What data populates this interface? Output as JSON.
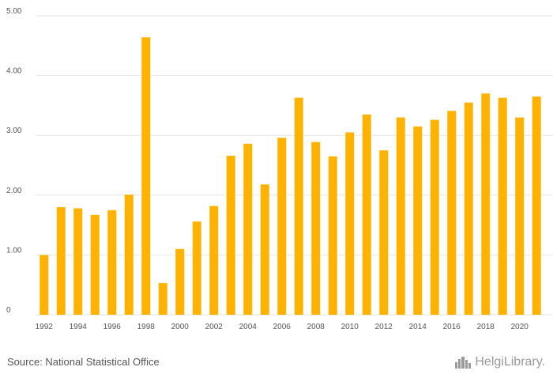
{
  "colors": {
    "bar": "#FFB300",
    "grid": "#e6e6e6",
    "axis_text": "#555555",
    "brand": "#9a9a9a"
  },
  "footer": {
    "source": "Source: National Statistical Office",
    "brand": "HelgiLibrary."
  },
  "chart_data": {
    "type": "bar",
    "title": "",
    "xlabel": "",
    "ylabel": "",
    "ylim": [
      0,
      5
    ],
    "yticks": [
      "0",
      "1.00",
      "2.00",
      "3.00",
      "4.00",
      "5.00"
    ],
    "grid": true,
    "categories": [
      1992,
      1993,
      1994,
      1995,
      1996,
      1997,
      1998,
      1999,
      2000,
      2001,
      2002,
      2003,
      2004,
      2005,
      2006,
      2007,
      2008,
      2009,
      2010,
      2011,
      2012,
      2013,
      2014,
      2015,
      2016,
      2017,
      2018,
      2019,
      2020,
      2021
    ],
    "xtick_labels": [
      "1992",
      "1994",
      "1996",
      "1998",
      "2000",
      "2002",
      "2004",
      "2006",
      "2008",
      "2010",
      "2012",
      "2014",
      "2016",
      "2018",
      "2020"
    ],
    "values": [
      1.0,
      1.8,
      1.78,
      1.67,
      1.75,
      2.01,
      4.64,
      0.53,
      1.1,
      1.56,
      1.82,
      2.66,
      2.86,
      2.18,
      2.96,
      3.63,
      2.89,
      2.65,
      3.05,
      3.35,
      2.75,
      3.3,
      3.15,
      3.26,
      3.41,
      3.55,
      3.7,
      3.63,
      3.3,
      3.65
    ]
  }
}
